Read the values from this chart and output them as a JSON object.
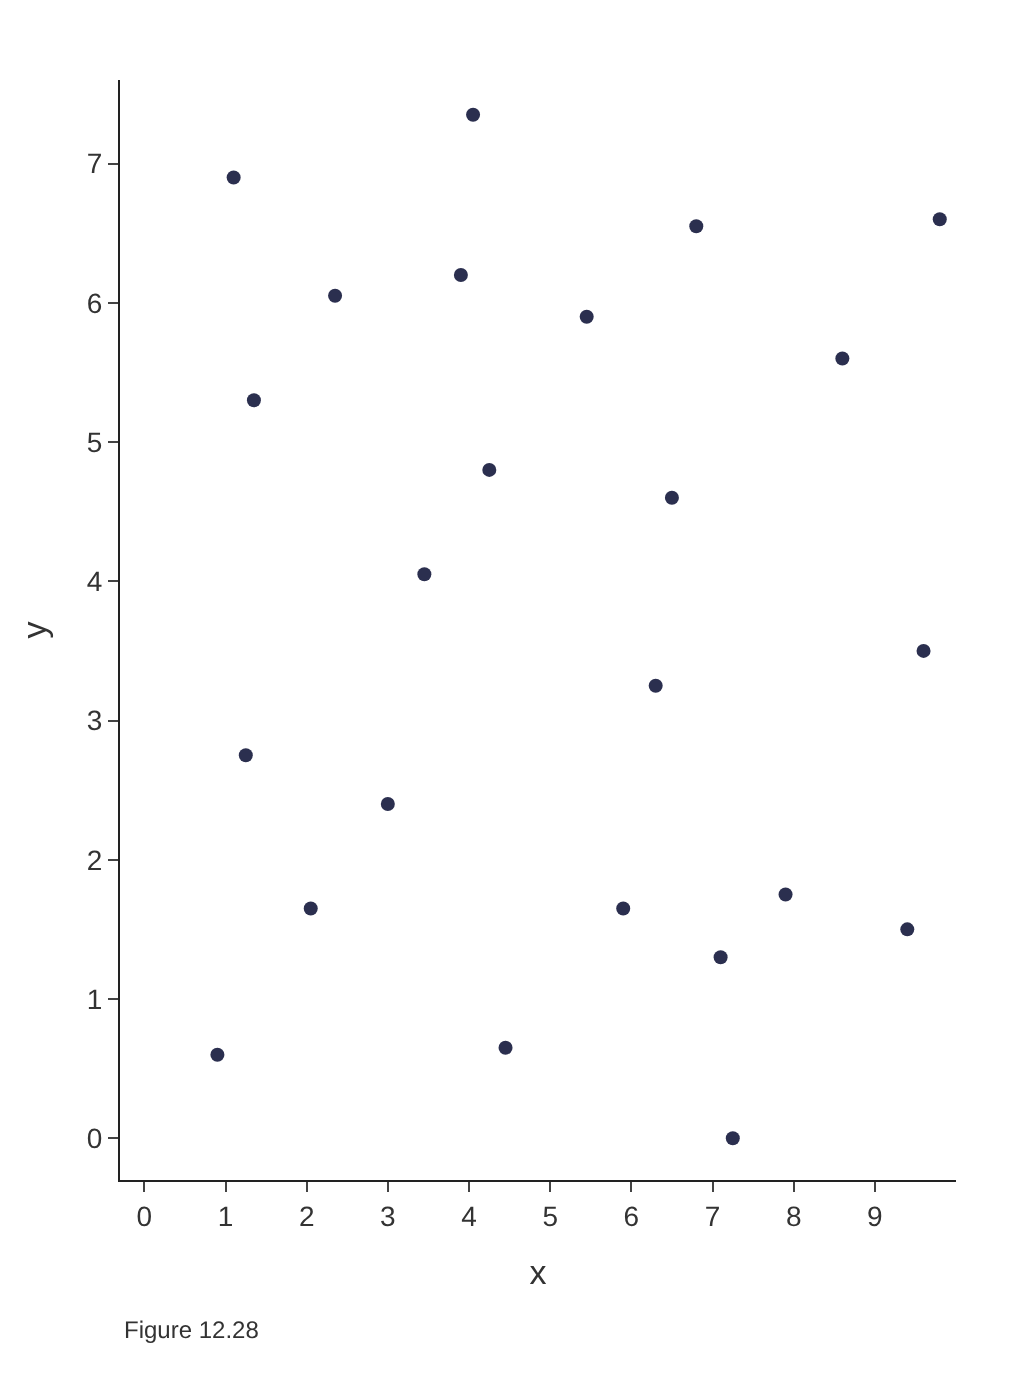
{
  "chart_data": {
    "type": "scatter",
    "xlabel": "x",
    "ylabel": "y",
    "annotations": [
      "Figure 12.28"
    ],
    "x": [
      0.9,
      1.25,
      1.35,
      1.1,
      2.05,
      2.35,
      3.0,
      3.45,
      3.9,
      4.05,
      4.25,
      4.45,
      5.45,
      5.9,
      6.3,
      6.5,
      6.8,
      7.1,
      7.25,
      7.9,
      8.6,
      9.4,
      9.6,
      9.8
    ],
    "values": [
      0.6,
      2.75,
      5.3,
      6.9,
      1.65,
      6.05,
      2.4,
      4.05,
      6.2,
      7.35,
      4.8,
      0.65,
      5.9,
      1.65,
      3.25,
      4.6,
      6.55,
      1.3,
      0.0,
      1.75,
      5.6,
      1.5,
      3.5,
      6.6
    ],
    "color": "#2b2f4f",
    "marker": "circle",
    "xlim": [
      -0.3,
      10
    ],
    "ylim": [
      -0.3,
      7.6
    ],
    "xticks": [
      0,
      1,
      2,
      3,
      4,
      5,
      6,
      7,
      8,
      9
    ],
    "yticks": [
      0,
      1,
      2,
      3,
      4,
      5,
      6,
      7
    ]
  }
}
